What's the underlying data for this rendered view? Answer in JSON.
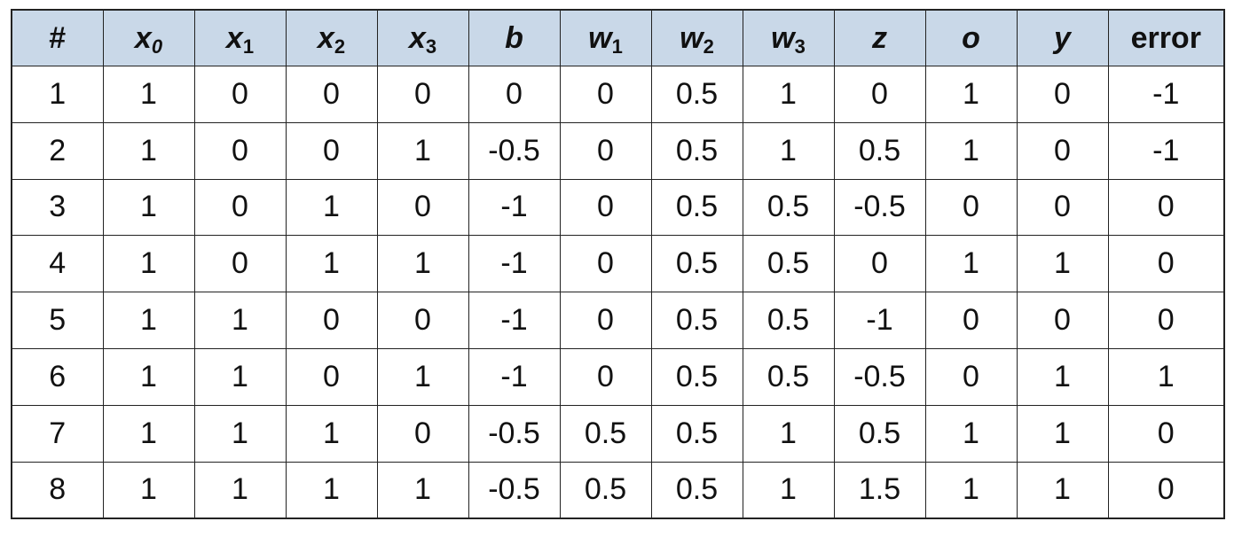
{
  "table": {
    "columns": [
      {
        "base": "#",
        "sub": ""
      },
      {
        "base": "x",
        "sub": "0"
      },
      {
        "base": "x",
        "sub": "1"
      },
      {
        "base": "x",
        "sub": "2"
      },
      {
        "base": "x",
        "sub": "3"
      },
      {
        "base": "b",
        "sub": ""
      },
      {
        "base": "w",
        "sub": "1"
      },
      {
        "base": "w",
        "sub": "2"
      },
      {
        "base": "w",
        "sub": "3"
      },
      {
        "base": "z",
        "sub": ""
      },
      {
        "base": "o",
        "sub": ""
      },
      {
        "base": "y",
        "sub": ""
      },
      {
        "base": "error",
        "sub": ""
      }
    ],
    "rows": [
      [
        "1",
        "1",
        "0",
        "0",
        "0",
        "0",
        "0",
        "0.5",
        "1",
        "0",
        "1",
        "0",
        "-1"
      ],
      [
        "2",
        "1",
        "0",
        "0",
        "1",
        "-0.5",
        "0",
        "0.5",
        "1",
        "0.5",
        "1",
        "0",
        "-1"
      ],
      [
        "3",
        "1",
        "0",
        "1",
        "0",
        "-1",
        "0",
        "0.5",
        "0.5",
        "-0.5",
        "0",
        "0",
        "0"
      ],
      [
        "4",
        "1",
        "0",
        "1",
        "1",
        "-1",
        "0",
        "0.5",
        "0.5",
        "0",
        "1",
        "1",
        "0"
      ],
      [
        "5",
        "1",
        "1",
        "0",
        "0",
        "-1",
        "0",
        "0.5",
        "0.5",
        "-1",
        "0",
        "0",
        "0"
      ],
      [
        "6",
        "1",
        "1",
        "0",
        "1",
        "-1",
        "0",
        "0.5",
        "0.5",
        "-0.5",
        "0",
        "1",
        "1"
      ],
      [
        "7",
        "1",
        "1",
        "1",
        "0",
        "-0.5",
        "0.5",
        "0.5",
        "1",
        "0.5",
        "1",
        "1",
        "0"
      ],
      [
        "8",
        "1",
        "1",
        "1",
        "1",
        "-0.5",
        "0.5",
        "0.5",
        "1",
        "1.5",
        "1",
        "1",
        "0"
      ]
    ]
  },
  "colors": {
    "header_bg": "#c9d8e8",
    "border": "#222222",
    "text": "#111111"
  }
}
